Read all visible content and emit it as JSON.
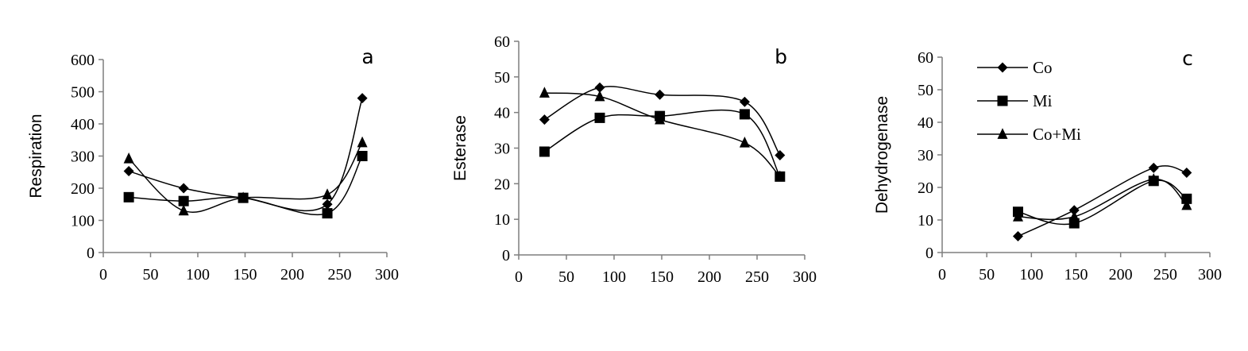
{
  "chart_data": [
    {
      "type": "line",
      "panel_label": "a",
      "ylabel": "Respiration",
      "xlabel": "",
      "xlim": [
        0,
        300
      ],
      "xticks": [
        0,
        50,
        100,
        150,
        200,
        250,
        300
      ],
      "ylim": [
        0,
        600
      ],
      "yticks": [
        0,
        100,
        200,
        300,
        400,
        500,
        600
      ],
      "series": [
        {
          "name": "Co",
          "marker": "diamond",
          "x": [
            27,
            85,
            148,
            237,
            274
          ],
          "y": [
            253,
            200,
            170,
            150,
            480
          ]
        },
        {
          "name": "Mi",
          "marker": "square",
          "x": [
            27,
            85,
            148,
            237,
            274
          ],
          "y": [
            172,
            160,
            170,
            122,
            300
          ]
        },
        {
          "name": "Co+Mi",
          "marker": "triangle",
          "x": [
            27,
            85,
            148,
            237,
            274
          ],
          "y": [
            292,
            130,
            170,
            180,
            342
          ]
        }
      ]
    },
    {
      "type": "line",
      "panel_label": "b",
      "ylabel": "Esterase",
      "xlabel": "",
      "xlim": [
        0,
        300
      ],
      "xticks": [
        0,
        50,
        100,
        150,
        200,
        250,
        300
      ],
      "ylim": [
        0,
        60
      ],
      "yticks": [
        0,
        10,
        20,
        30,
        40,
        50,
        60
      ],
      "series": [
        {
          "name": "Co",
          "marker": "diamond",
          "x": [
            27,
            85,
            148,
            237,
            274
          ],
          "y": [
            38,
            47,
            45,
            43,
            28
          ]
        },
        {
          "name": "Mi",
          "marker": "square",
          "x": [
            27,
            85,
            148,
            237,
            274
          ],
          "y": [
            29,
            38.5,
            39,
            39.5,
            22
          ]
        },
        {
          "name": "Co+Mi",
          "marker": "triangle",
          "x": [
            27,
            85,
            148,
            237,
            274
          ],
          "y": [
            45.5,
            44.5,
            38,
            31.5,
            22
          ]
        }
      ]
    },
    {
      "type": "line",
      "panel_label": "c",
      "ylabel": "Dehydrogenase",
      "xlabel": "",
      "xlim": [
        0,
        300
      ],
      "xticks": [
        0,
        50,
        100,
        150,
        200,
        250,
        300
      ],
      "ylim": [
        0,
        60
      ],
      "yticks": [
        0,
        10,
        20,
        30,
        40,
        50,
        60
      ],
      "legend": {
        "position": "top-left",
        "entries": [
          "Co",
          "Mi",
          "Co+Mi"
        ]
      },
      "series": [
        {
          "name": "Co",
          "marker": "diamond",
          "x": [
            85,
            148,
            237,
            274
          ],
          "y": [
            5,
            13,
            26,
            24.5
          ]
        },
        {
          "name": "Mi",
          "marker": "square",
          "x": [
            85,
            148,
            237,
            274
          ],
          "y": [
            12.5,
            9,
            22,
            16.5
          ]
        },
        {
          "name": "Co+Mi",
          "marker": "triangle",
          "x": [
            85,
            148,
            237,
            274
          ],
          "y": [
            11,
            11,
            22.5,
            14.5
          ]
        }
      ]
    }
  ]
}
